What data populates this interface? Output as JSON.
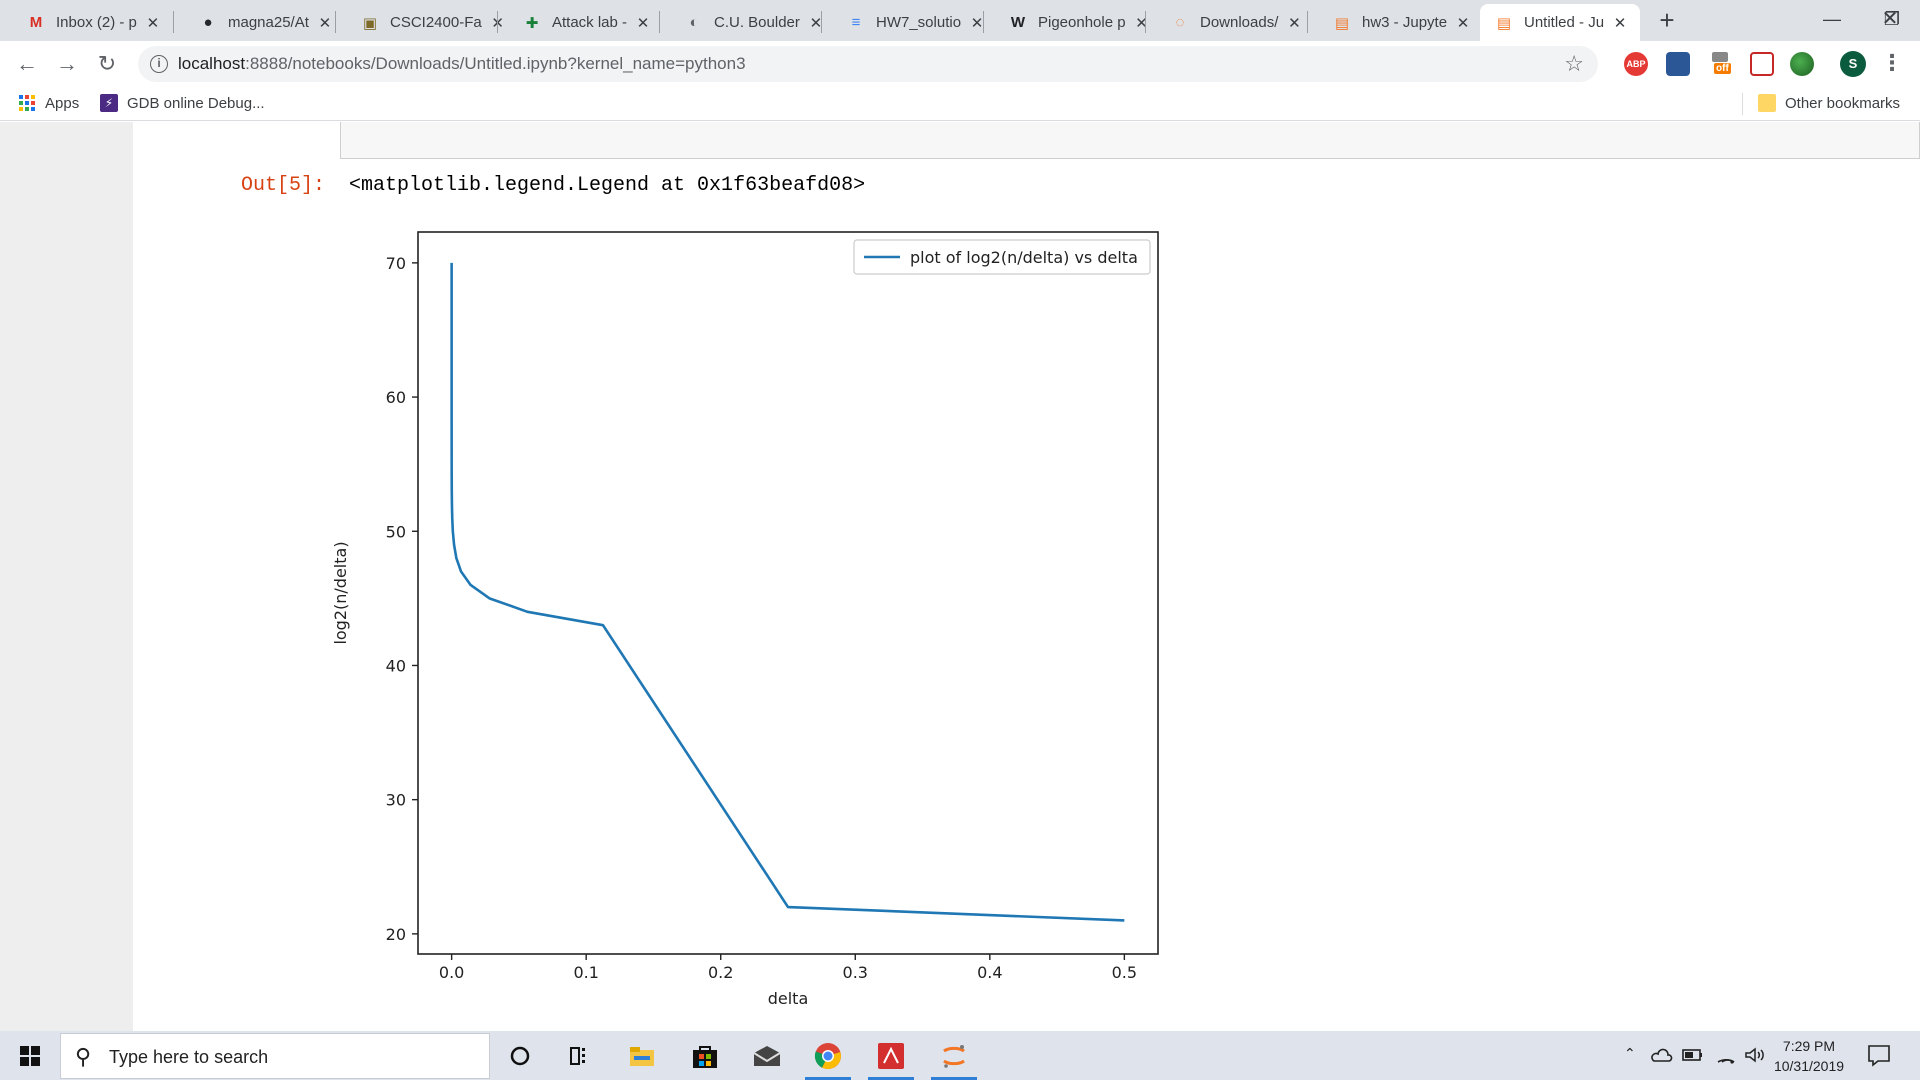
{
  "browser": {
    "tabs": [
      {
        "title": "Inbox (2) - p",
        "icon": "gmail-icon",
        "color": "#d93025"
      },
      {
        "title": "magna25/At",
        "icon": "github-icon",
        "color": "#24292e"
      },
      {
        "title": "CSCI2400-Fa",
        "icon": "moodle-icon",
        "color": "#7f6a2a"
      },
      {
        "title": "Attack lab - ",
        "icon": "sheets-icon",
        "color": "#188038"
      },
      {
        "title": "C.U. Boulder",
        "icon": "globe-icon",
        "color": "#5f6368"
      },
      {
        "title": "HW7_solutio",
        "icon": "docs-icon",
        "color": "#4285f4"
      },
      {
        "title": "Pigeonhole p",
        "icon": "wikipedia-icon",
        "color": "#202124"
      },
      {
        "title": "Downloads/",
        "icon": "jupyter-icon",
        "color": "#f37626"
      },
      {
        "title": "hw3 - Jupyte",
        "icon": "jupyter-notebook-icon",
        "color": "#f37626"
      },
      {
        "title": "Untitled - Ju",
        "icon": "jupyter-notebook-icon",
        "color": "#f37626",
        "active": true
      }
    ],
    "new_tab": "+",
    "url_host": "localhost",
    "url_rest": ":8888/notebooks/Downloads/Untitled.ipynb?kernel_name=python3",
    "bookmarks": {
      "apps": "Apps",
      "gdb": "GDB online Debug...",
      "other": "Other bookmarks"
    },
    "profile_initial": "S",
    "extensions": {
      "abp": "ABP",
      "off": "off"
    }
  },
  "notebook": {
    "out_prompt": "Out[5]:",
    "out_text": "<matplotlib.legend.Legend at 0x1f63beafd08>"
  },
  "chart_data": {
    "type": "line",
    "title": "",
    "xlabel": "delta",
    "ylabel": "log2(n/delta)",
    "xlim": [
      -0.025,
      0.525
    ],
    "ylim": [
      18.5,
      72.3
    ],
    "xticks": [
      0.0,
      0.1,
      0.2,
      0.3,
      0.4,
      0.5
    ],
    "xtick_labels": [
      "0.0",
      "0.1",
      "0.2",
      "0.3",
      "0.4",
      "0.5"
    ],
    "yticks": [
      20,
      30,
      40,
      50,
      60,
      70
    ],
    "ytick_labels": [
      "20",
      "30",
      "40",
      "50",
      "60",
      "70"
    ],
    "legend": "upper right",
    "series": [
      {
        "name": "plot of log2(n/delta) vs delta",
        "color": "#1f77b4",
        "x": [
          8.4e-10,
          1.7e-09,
          3.4e-09,
          6.7e-09,
          1.3e-08,
          2.7e-08,
          5.4e-08,
          1.1e-07,
          2.1e-07,
          4.3e-07,
          8.6e-07,
          1.7e-06,
          3.4e-06,
          6.9e-06,
          1.4e-05,
          2.7e-05,
          5.5e-05,
          0.00011,
          0.00022,
          0.00044,
          0.00088,
          0.0018,
          0.0035,
          0.007,
          0.0141,
          0.0281,
          0.0563,
          0.1125,
          0.25,
          0.5
        ],
        "y": [
          70,
          69,
          68,
          67,
          66,
          65,
          64,
          63,
          62,
          61,
          60,
          59,
          58,
          57,
          56,
          55,
          54,
          53,
          52,
          51,
          50,
          49,
          48,
          47,
          46,
          45,
          44,
          43,
          22,
          21
        ]
      }
    ]
  },
  "taskbar": {
    "search_placeholder": "Type here to search",
    "time": "7:29 PM",
    "date": "10/31/2019"
  }
}
